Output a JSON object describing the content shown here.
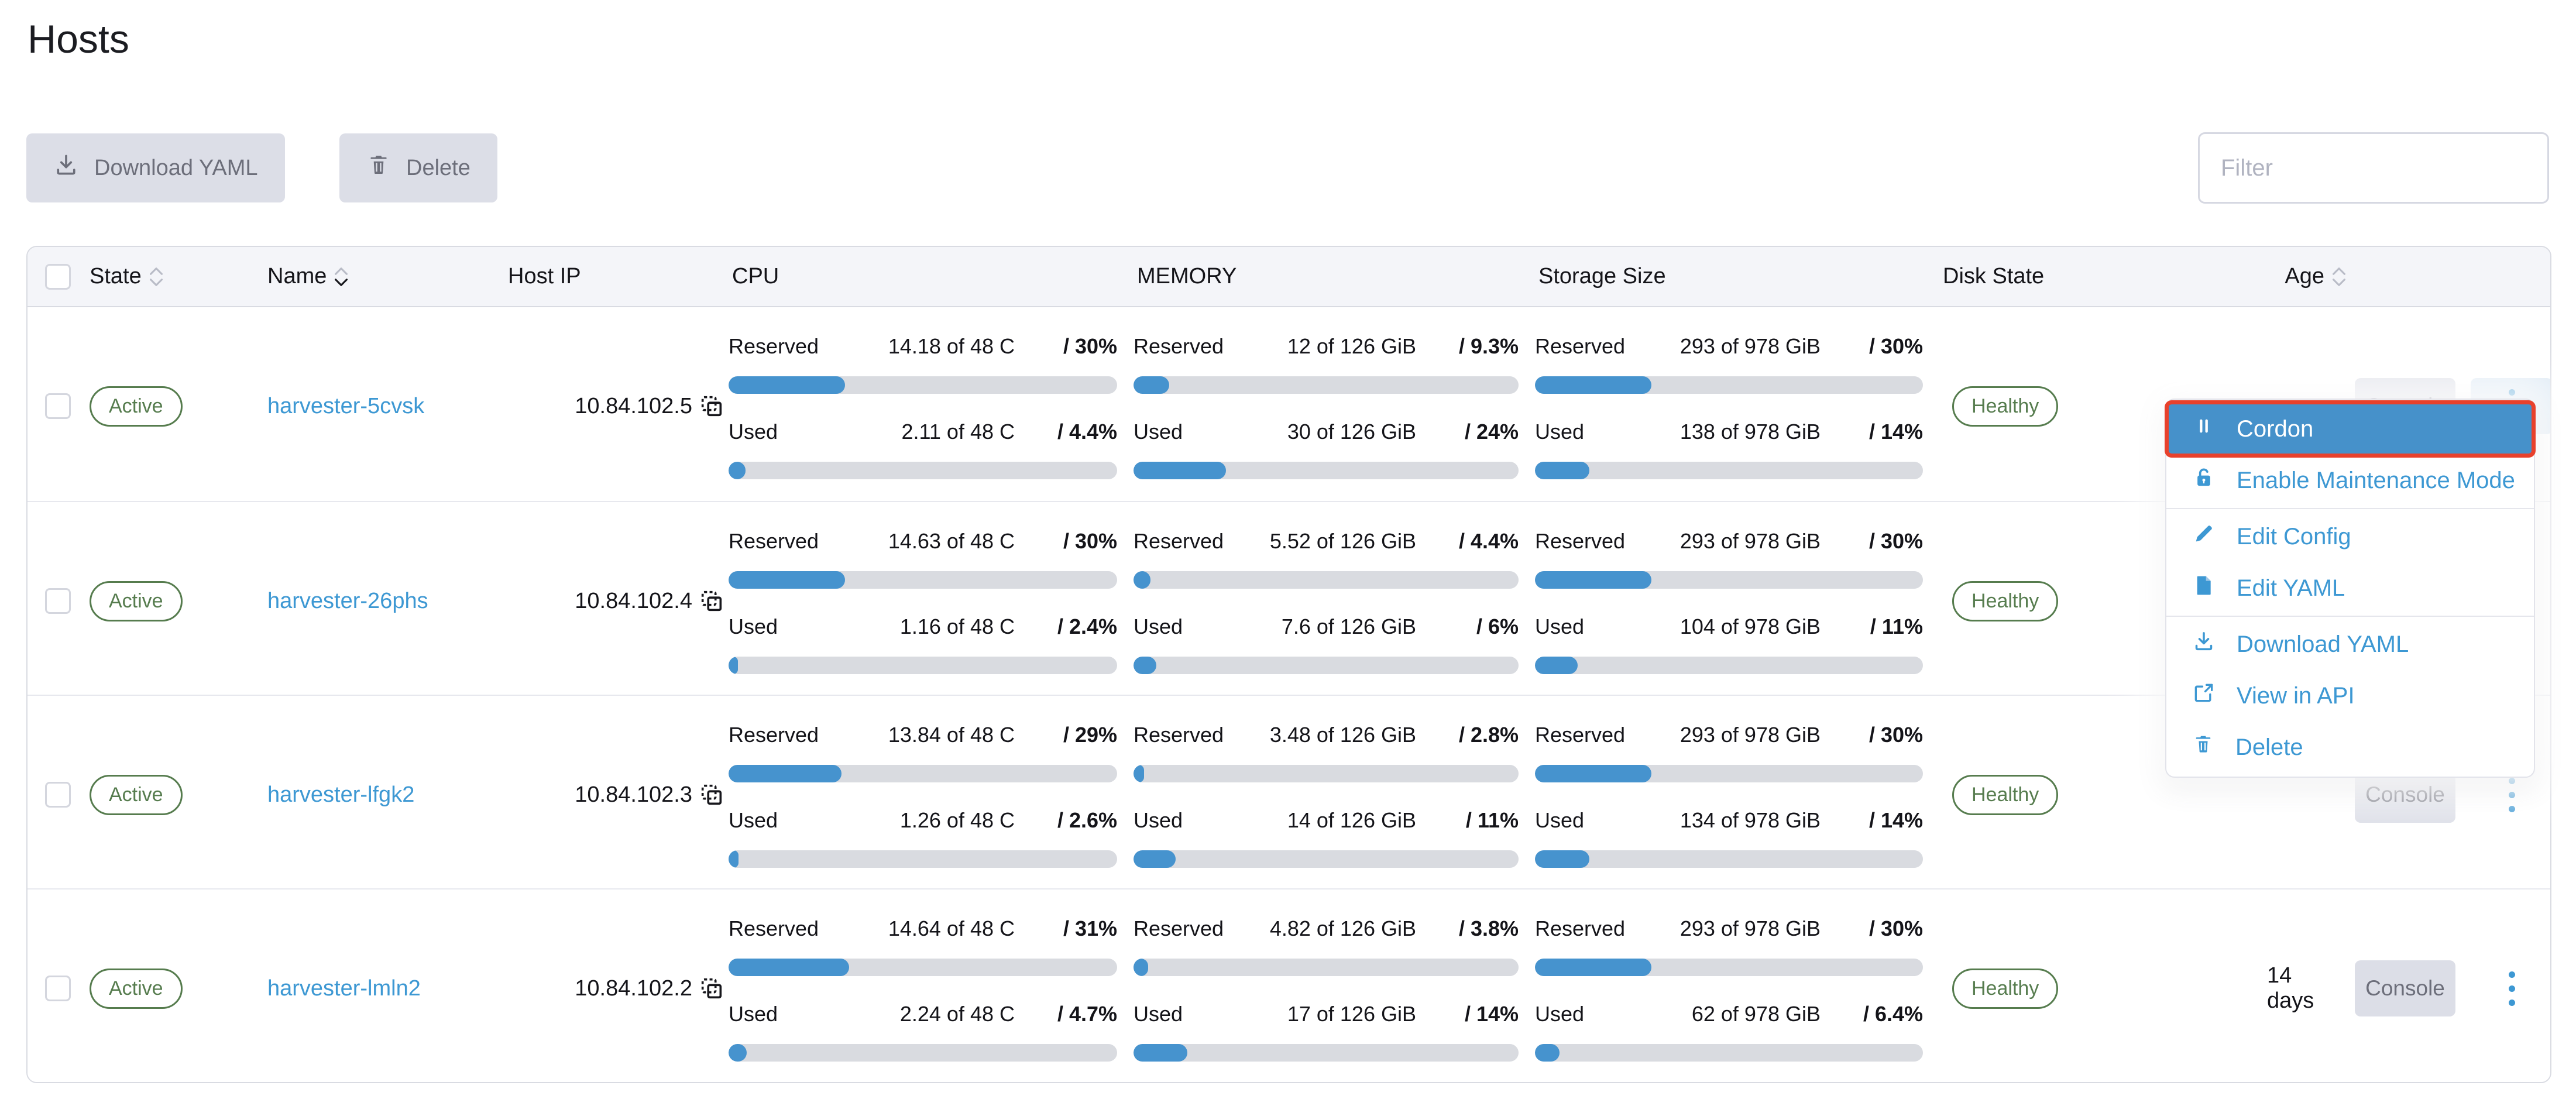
{
  "page": {
    "title": "Hosts"
  },
  "toolbar": {
    "download_yaml_label": "Download YAML",
    "delete_label": "Delete",
    "filter_placeholder": "Filter"
  },
  "colors": {
    "accent_blue": "#3d98d3",
    "bar_fill": "#4693ce",
    "bar_track": "#d9dbe0",
    "success_green": "#567c4e",
    "menu_selected_bg": "#4691ca",
    "annotation_red": "#e8412c",
    "button_gray": "#dcdee7"
  },
  "table": {
    "headers": [
      {
        "label": "State",
        "sort": "both"
      },
      {
        "label": "Name",
        "sort": "desc"
      },
      {
        "label": "Host IP",
        "sort": null
      },
      {
        "label": "CPU",
        "sort": null
      },
      {
        "label": "MEMORY",
        "sort": null
      },
      {
        "label": "Storage Size",
        "sort": null
      },
      {
        "label": "Disk State",
        "sort": null
      },
      {
        "label": "Age",
        "sort": "both"
      }
    ],
    "meter_labels": {
      "reserved": "Reserved",
      "used": "Used"
    },
    "console_label": "Console",
    "rows": [
      {
        "state": "Active",
        "name": "harvester-5cvsk",
        "host_ip": "10.84.102.5",
        "cpu": {
          "reserved": {
            "value": "14.18 of 48 C",
            "ratio": "/ 30%",
            "fill": 30
          },
          "used": {
            "value": "2.11 of 48 C",
            "ratio": "/ 4.4%",
            "fill": 4.4
          }
        },
        "memory": {
          "reserved": {
            "value": "12 of 126 GiB",
            "ratio": "/ 9.3%",
            "fill": 9.3
          },
          "used": {
            "value": "30 of 126 GiB",
            "ratio": "/ 24%",
            "fill": 24
          }
        },
        "storage": {
          "reserved": {
            "value": "293 of 978 GiB",
            "ratio": "/ 30%",
            "fill": 30
          },
          "used": {
            "value": "138 of 978 GiB",
            "ratio": "/ 14%",
            "fill": 14
          }
        },
        "disk_state": "Healthy",
        "age": "",
        "actions_active": true
      },
      {
        "state": "Active",
        "name": "harvester-26phs",
        "host_ip": "10.84.102.4",
        "cpu": {
          "reserved": {
            "value": "14.63 of 48 C",
            "ratio": "/ 30%",
            "fill": 30
          },
          "used": {
            "value": "1.16 of 48 C",
            "ratio": "/ 2.4%",
            "fill": 2.4
          }
        },
        "memory": {
          "reserved": {
            "value": "5.52 of 126 GiB",
            "ratio": "/ 4.4%",
            "fill": 4.4
          },
          "used": {
            "value": "7.6 of 126 GiB",
            "ratio": "/ 6%",
            "fill": 6
          }
        },
        "storage": {
          "reserved": {
            "value": "293 of 978 GiB",
            "ratio": "/ 30%",
            "fill": 30
          },
          "used": {
            "value": "104 of 978 GiB",
            "ratio": "/ 11%",
            "fill": 11
          }
        },
        "disk_state": "Healthy",
        "age": "",
        "actions_active": false
      },
      {
        "state": "Active",
        "name": "harvester-lfgk2",
        "host_ip": "10.84.102.3",
        "cpu": {
          "reserved": {
            "value": "13.84 of 48 C",
            "ratio": "/ 29%",
            "fill": 29
          },
          "used": {
            "value": "1.26 of 48 C",
            "ratio": "/ 2.6%",
            "fill": 2.6
          }
        },
        "memory": {
          "reserved": {
            "value": "3.48 of 126 GiB",
            "ratio": "/ 2.8%",
            "fill": 2.8
          },
          "used": {
            "value": "14 of 126 GiB",
            "ratio": "/ 11%",
            "fill": 11
          }
        },
        "storage": {
          "reserved": {
            "value": "293 of 978 GiB",
            "ratio": "/ 30%",
            "fill": 30
          },
          "used": {
            "value": "134 of 978 GiB",
            "ratio": "/ 14%",
            "fill": 14
          }
        },
        "disk_state": "Healthy",
        "age": "",
        "actions_active": false
      },
      {
        "state": "Active",
        "name": "harvester-lmln2",
        "host_ip": "10.84.102.2",
        "cpu": {
          "reserved": {
            "value": "14.64 of 48 C",
            "ratio": "/ 31%",
            "fill": 31
          },
          "used": {
            "value": "2.24 of 48 C",
            "ratio": "/ 4.7%",
            "fill": 4.7
          }
        },
        "memory": {
          "reserved": {
            "value": "4.82 of 126 GiB",
            "ratio": "/ 3.8%",
            "fill": 3.8
          },
          "used": {
            "value": "17 of 126 GiB",
            "ratio": "/ 14%",
            "fill": 14
          }
        },
        "storage": {
          "reserved": {
            "value": "293 of 978 GiB",
            "ratio": "/ 30%",
            "fill": 30
          },
          "used": {
            "value": "62 of 978 GiB",
            "ratio": "/ 6.4%",
            "fill": 6.4
          }
        },
        "disk_state": "Healthy",
        "age": "14 days",
        "actions_active": false
      }
    ]
  },
  "context_menu": {
    "items": [
      {
        "label": "Cordon",
        "icon": "pause-icon",
        "selected": true,
        "annotated": true
      },
      {
        "label": "Enable Maintenance Mode",
        "icon": "unlock-icon"
      },
      {
        "divider": true
      },
      {
        "label": "Edit Config",
        "icon": "pencil-icon"
      },
      {
        "label": "Edit YAML",
        "icon": "file-icon"
      },
      {
        "divider": true
      },
      {
        "label": "Download YAML",
        "icon": "download-icon"
      },
      {
        "label": "View in API",
        "icon": "external-link-icon"
      },
      {
        "label": "Delete",
        "icon": "trash-icon"
      }
    ]
  }
}
